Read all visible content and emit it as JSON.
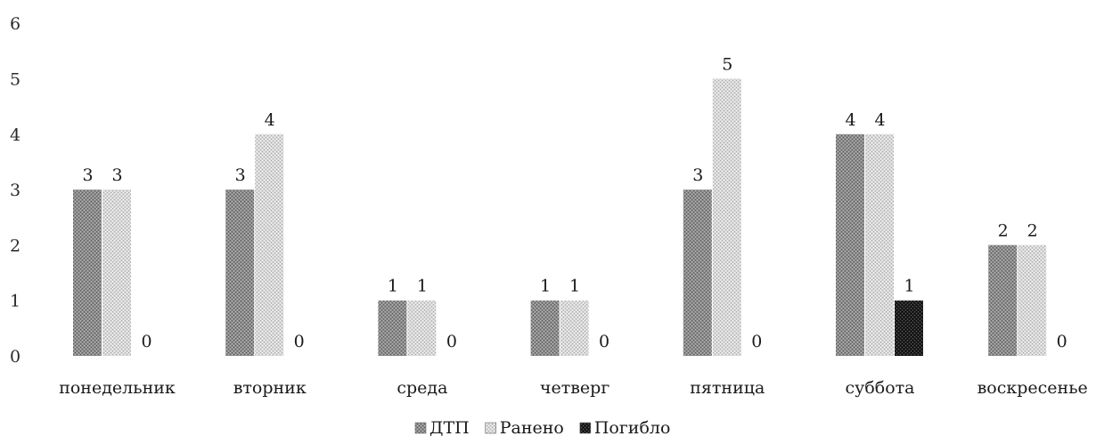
{
  "chart_data": {
    "type": "bar",
    "title": "",
    "xlabel": "",
    "ylabel": "",
    "categories": [
      "понедельник",
      "вторник",
      "среда",
      "четверг",
      "пятница",
      "суббота",
      "воскресенье"
    ],
    "series": [
      {
        "name": "ДТП",
        "values": [
          3,
          3,
          1,
          1,
          3,
          4,
          2
        ],
        "color": "#8c8c8c"
      },
      {
        "name": "Ранено",
        "values": [
          3,
          4,
          1,
          1,
          5,
          4,
          2
        ],
        "color": "#d9d9d9"
      },
      {
        "name": "Погибло",
        "values": [
          0,
          0,
          0,
          0,
          0,
          1,
          0
        ],
        "color": "#1e1e1e"
      }
    ],
    "yticks": [
      0,
      1,
      2,
      3,
      4,
      5,
      6
    ],
    "ylim": [
      0,
      6
    ],
    "grid": false,
    "legend_position": "bottom",
    "data_labels": true
  }
}
